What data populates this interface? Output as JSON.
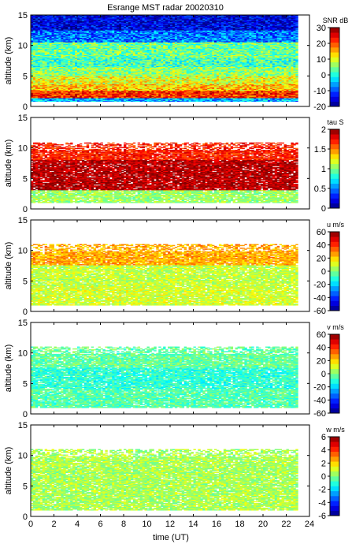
{
  "figure": {
    "title": "Esrange MST radar 20020310",
    "xlabel": "time (UT)",
    "xticks": [
      "0",
      "2",
      "4",
      "6",
      "8",
      "10",
      "12",
      "14",
      "16",
      "18",
      "20",
      "22",
      "24"
    ],
    "xlim": [
      0,
      24
    ],
    "data_time_range": [
      0,
      23
    ]
  },
  "chart_data": [
    {
      "type": "heatmap",
      "name": "snr",
      "ylabel": "altitude (km)",
      "xlim": [
        0,
        24
      ],
      "ylim": [
        0,
        15
      ],
      "yticks": [
        "0",
        "5",
        "10",
        "15"
      ],
      "colorbar": {
        "label": "SNR dB",
        "min": -20,
        "max": 30,
        "ticks": [
          "30",
          "20",
          "10",
          "0",
          "-10",
          "-20"
        ]
      },
      "layers": [
        {
          "alt": [
            0.8,
            1.3
          ],
          "value": -5
        },
        {
          "alt": [
            1.3,
            2.5
          ],
          "value": 22
        },
        {
          "alt": [
            2.5,
            3.6
          ],
          "value": 14
        },
        {
          "alt": [
            3.6,
            5.0
          ],
          "value": 10
        },
        {
          "alt": [
            5.0,
            6.5
          ],
          "value": 6
        },
        {
          "alt": [
            6.5,
            8.0
          ],
          "value": 2
        },
        {
          "alt": [
            8.0,
            10.5
          ],
          "value": 4
        },
        {
          "alt": [
            10.5,
            12.5
          ],
          "value": -8
        },
        {
          "alt": [
            12.5,
            15.0
          ],
          "value": -15
        }
      ]
    },
    {
      "type": "heatmap",
      "name": "tau",
      "ylabel": "altitude (km)",
      "xlim": [
        0,
        24
      ],
      "ylim": [
        0,
        15
      ],
      "yticks": [
        "0",
        "5",
        "10",
        "15"
      ],
      "colorbar": {
        "label": "tau S",
        "min": 0,
        "max": 2,
        "ticks": [
          "2",
          "1.5",
          "1",
          "0.5",
          "0"
        ]
      },
      "data_alt_range": [
        1.0,
        10.8
      ],
      "layers": [
        {
          "alt": [
            1.0,
            3.0
          ],
          "value": 1.05
        },
        {
          "alt": [
            3.0,
            8.0
          ],
          "value": 1.9
        },
        {
          "alt": [
            8.0,
            10.8
          ],
          "value": 1.7
        }
      ]
    },
    {
      "type": "heatmap",
      "name": "u",
      "ylabel": "altitude (km)",
      "xlim": [
        0,
        24
      ],
      "ylim": [
        0,
        15
      ],
      "yticks": [
        "0",
        "5",
        "10",
        "15"
      ],
      "colorbar": {
        "label": "u m/s",
        "min": -60,
        "max": 60,
        "ticks": [
          "60",
          "40",
          "20",
          "0",
          "-20",
          "-40",
          "-60"
        ]
      },
      "data_alt_range": [
        1.0,
        11.0
      ],
      "layers": [
        {
          "alt": [
            1.0,
            4.0
          ],
          "value": 10
        },
        {
          "alt": [
            4.0,
            7.5
          ],
          "value": 8
        },
        {
          "alt": [
            7.5,
            11.0
          ],
          "value": 25
        }
      ]
    },
    {
      "type": "heatmap",
      "name": "v",
      "ylabel": "altitude (km)",
      "xlim": [
        0,
        24
      ],
      "ylim": [
        0,
        15
      ],
      "yticks": [
        "0",
        "5",
        "10",
        "15"
      ],
      "colorbar": {
        "label": "v m/s",
        "min": -60,
        "max": 60,
        "ticks": [
          "60",
          "40",
          "20",
          "0",
          "-20",
          "-40",
          "-60"
        ]
      },
      "data_alt_range": [
        1.0,
        11.0
      ],
      "layers": [
        {
          "alt": [
            1.0,
            4.0
          ],
          "value": -5
        },
        {
          "alt": [
            4.0,
            7.5
          ],
          "value": -10
        },
        {
          "alt": [
            7.5,
            11.0
          ],
          "value": -3
        }
      ]
    },
    {
      "type": "heatmap",
      "name": "w",
      "ylabel": "altitude (km)",
      "xlim": [
        0,
        24
      ],
      "ylim": [
        0,
        15
      ],
      "yticks": [
        "0",
        "5",
        "10",
        "15"
      ],
      "colorbar": {
        "label": "w m/s",
        "min": -6,
        "max": 6,
        "ticks": [
          "6",
          "4",
          "2",
          "0",
          "-2",
          "-4",
          "-6"
        ]
      },
      "data_alt_range": [
        1.0,
        11.0
      ],
      "layers": [
        {
          "alt": [
            1.0,
            11.0
          ],
          "value": 0.5
        }
      ]
    }
  ]
}
